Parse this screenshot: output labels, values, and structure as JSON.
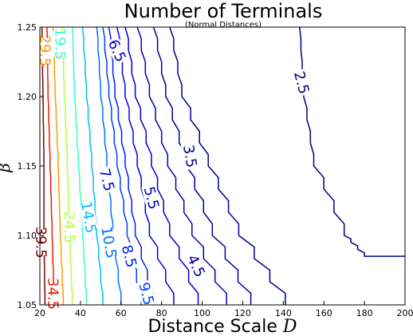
{
  "chart_data": {
    "type": "contour",
    "title": "Number of Terminals",
    "subtitle": "(Normal Distances)",
    "xlabel": "Distance Scale D",
    "xlabel_italic": "D",
    "ylabel": "β",
    "xlim": [
      20,
      200
    ],
    "ylim": [
      1.05,
      1.25
    ],
    "xticks": [
      20,
      40,
      60,
      80,
      100,
      120,
      140,
      160,
      180,
      200
    ],
    "yticks": [
      1.05,
      1.1,
      1.15,
      1.2,
      1.25
    ],
    "ytick_labels": [
      "1.05",
      "1.10",
      "1.15",
      "1.20",
      "1.25"
    ],
    "grid": false,
    "contours": [
      {
        "level": "39.5",
        "color": "#800000",
        "points": [
          [
            21.0,
            1.25
          ],
          [
            21.5,
            1.2
          ],
          [
            22.0,
            1.15
          ],
          [
            22.0,
            1.1
          ],
          [
            22.5,
            1.05
          ]
        ],
        "label_at": [
          20.5,
          1.095
        ],
        "label_rot": 90
      },
      {
        "level": "34.5",
        "color": "#e81d00",
        "points": [
          [
            23.5,
            1.25
          ],
          [
            24.0,
            1.2
          ],
          [
            25.0,
            1.15
          ],
          [
            26.0,
            1.1
          ],
          [
            27.0,
            1.05
          ]
        ],
        "label_at": [
          26.5,
          1.058
        ],
        "label_rot": 90
      },
      {
        "level": "29.5",
        "color": "#ff9a00",
        "points": [
          [
            26.5,
            1.25
          ],
          [
            27.5,
            1.2
          ],
          [
            29.0,
            1.15
          ],
          [
            30.0,
            1.1
          ],
          [
            31.5,
            1.05
          ]
        ],
        "label_at": [
          22.5,
          1.233
        ],
        "label_rot": 90
      },
      {
        "level": "24.5",
        "color": "#b4ff43",
        "points": [
          [
            31.0,
            1.25
          ],
          [
            32.0,
            1.2
          ],
          [
            33.5,
            1.15
          ],
          [
            34.5,
            1.1
          ],
          [
            36.0,
            1.05
          ]
        ],
        "label_at": [
          34.5,
          1.106
        ],
        "label_rot": 90
      },
      {
        "level": "19.5",
        "color": "#33ffc3",
        "points": [
          [
            36.0,
            1.25
          ],
          [
            37.0,
            1.2
          ],
          [
            39.0,
            1.15
          ],
          [
            41.0,
            1.1
          ],
          [
            43.0,
            1.05
          ]
        ],
        "label_at": [
          30.0,
          1.238
        ],
        "label_rot": 90
      },
      {
        "level": "14.5",
        "color": "#00bcff",
        "points": [
          [
            41.0,
            1.25
          ],
          [
            43.0,
            1.2
          ],
          [
            45.5,
            1.15
          ],
          [
            48.0,
            1.1
          ],
          [
            51.0,
            1.05
          ]
        ],
        "label_at": [
          44.0,
          1.113
        ],
        "label_rot": 80
      },
      {
        "level": "10.5",
        "color": "#0070ff",
        "points": [
          [
            48.0,
            1.25
          ],
          [
            50.0,
            1.2
          ],
          [
            53.0,
            1.15
          ],
          [
            56.0,
            1.1
          ],
          [
            60.0,
            1.05
          ]
        ],
        "label_at": [
          54.0,
          1.095
        ],
        "label_rot": 80
      },
      {
        "level": "9.5",
        "color": "#0040ff",
        "points": [
          [
            51.0,
            1.25
          ],
          [
            54.0,
            1.2
          ],
          [
            58.0,
            1.15
          ],
          [
            63.0,
            1.1
          ],
          [
            70.0,
            1.05
          ]
        ],
        "label_at": [
          72.5,
          1.058
        ],
        "label_rot": 75
      },
      {
        "level": "8.5",
        "color": "#0020f0",
        "points": [
          [
            54.0,
            1.25
          ],
          [
            57.0,
            1.2
          ],
          [
            62.0,
            1.15
          ],
          [
            67.0,
            1.1
          ],
          [
            76.0,
            1.05
          ]
        ],
        "label_at": [
          64.0,
          1.085
        ],
        "label_rot": 75
      },
      {
        "level": "7.5",
        "color": "#0000da",
        "points": [
          [
            58.0,
            1.25
          ],
          [
            62.0,
            1.2
          ],
          [
            68.0,
            1.15
          ],
          [
            74.0,
            1.1
          ],
          [
            86.0,
            1.05
          ]
        ],
        "label_at": [
          53.0,
          1.14
        ],
        "label_rot": 75
      },
      {
        "level": "6.5",
        "color": "#0000cd",
        "points": [
          [
            62.0,
            1.25
          ],
          [
            67.0,
            1.2
          ],
          [
            75.0,
            1.15
          ],
          [
            84.0,
            1.1
          ],
          [
            98.0,
            1.05
          ]
        ],
        "label_at": [
          58.0,
          1.233
        ],
        "label_rot": 65
      },
      {
        "level": "5.5",
        "color": "#0000b4",
        "points": [
          [
            68.0,
            1.25
          ],
          [
            74.0,
            1.2
          ],
          [
            83.0,
            1.15
          ],
          [
            95.0,
            1.1
          ],
          [
            112.0,
            1.05
          ]
        ],
        "label_at": [
          75.0,
          1.127
        ],
        "label_rot": 75
      },
      {
        "level": "4.5",
        "color": "#00009c",
        "points": [
          [
            76.0,
            1.25
          ],
          [
            82.0,
            1.2
          ],
          [
            92.0,
            1.15
          ],
          [
            105.0,
            1.1
          ],
          [
            124.0,
            1.05
          ]
        ],
        "label_at": [
          97.0,
          1.078
        ],
        "label_rot": 65
      },
      {
        "level": "3.5",
        "color": "#000088",
        "points": [
          [
            84.0,
            1.25
          ],
          [
            90.0,
            1.2
          ],
          [
            103.0,
            1.15
          ],
          [
            118.0,
            1.1
          ],
          [
            141.0,
            1.05
          ]
        ],
        "label_at": [
          94.0,
          1.157
        ],
        "label_rot": 80
      },
      {
        "level": "2.5",
        "color": "#000080",
        "points": [
          [
            148.0,
            1.25
          ],
          [
            150.0,
            1.2
          ],
          [
            155.0,
            1.15
          ],
          [
            170.0,
            1.1
          ],
          [
            180.0,
            1.085
          ],
          [
            200.0,
            1.085
          ]
        ],
        "label_at": [
          149.0,
          1.21
        ],
        "label_rot": 75
      }
    ]
  }
}
